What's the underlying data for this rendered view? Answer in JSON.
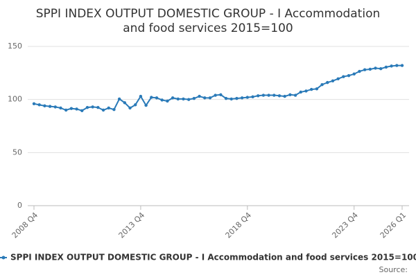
{
  "chart_data": {
    "type": "line",
    "title": [
      "SPPI INDEX OUTPUT DOMESTIC GROUP - I Accommodation",
      "and food services 2015=100"
    ],
    "categories": [
      "2008 Q4",
      null,
      null,
      null,
      null,
      null,
      null,
      null,
      null,
      null,
      null,
      null,
      null,
      null,
      null,
      null,
      null,
      null,
      null,
      null,
      "2013 Q4",
      null,
      null,
      null,
      null,
      null,
      null,
      null,
      null,
      null,
      null,
      null,
      null,
      null,
      null,
      null,
      null,
      null,
      null,
      null,
      "2018 Q4",
      null,
      null,
      null,
      null,
      null,
      null,
      null,
      null,
      null,
      null,
      null,
      null,
      null,
      null,
      null,
      null,
      null,
      null,
      null,
      "2023 Q4",
      null,
      null,
      null,
      null,
      null,
      null,
      null,
      null,
      "2026 Q1"
    ],
    "series": [
      {
        "name": "SPPI INDEX OUTPUT DOMESTIC GROUP - I Accommodation and food services 2015=100",
        "color": "#2a7ab8",
        "values": [
          96,
          95,
          94,
          93.5,
          93,
          92,
          90,
          91.5,
          91,
          89.5,
          92.5,
          93,
          92.5,
          90,
          92,
          90.5,
          100.5,
          97,
          92,
          95,
          103,
          94.5,
          102,
          101.5,
          99.5,
          98.5,
          101.5,
          100.5,
          100.5,
          100,
          101,
          103,
          101.5,
          101.5,
          104,
          104.5,
          101,
          100.5,
          101,
          101.5,
          102,
          102.5,
          103.5,
          104,
          104,
          104,
          103.5,
          103,
          104.5,
          104,
          107,
          108,
          109.5,
          110,
          114,
          116,
          117.5,
          119.5,
          121.5,
          122.5,
          124,
          126.5,
          128,
          128.5,
          129.5,
          129,
          130.5,
          131.5,
          132,
          132
        ]
      }
    ],
    "ylim": [
      0,
      150
    ],
    "yticks": [
      0,
      50,
      100,
      150
    ],
    "grid": true,
    "source": "Source:"
  }
}
